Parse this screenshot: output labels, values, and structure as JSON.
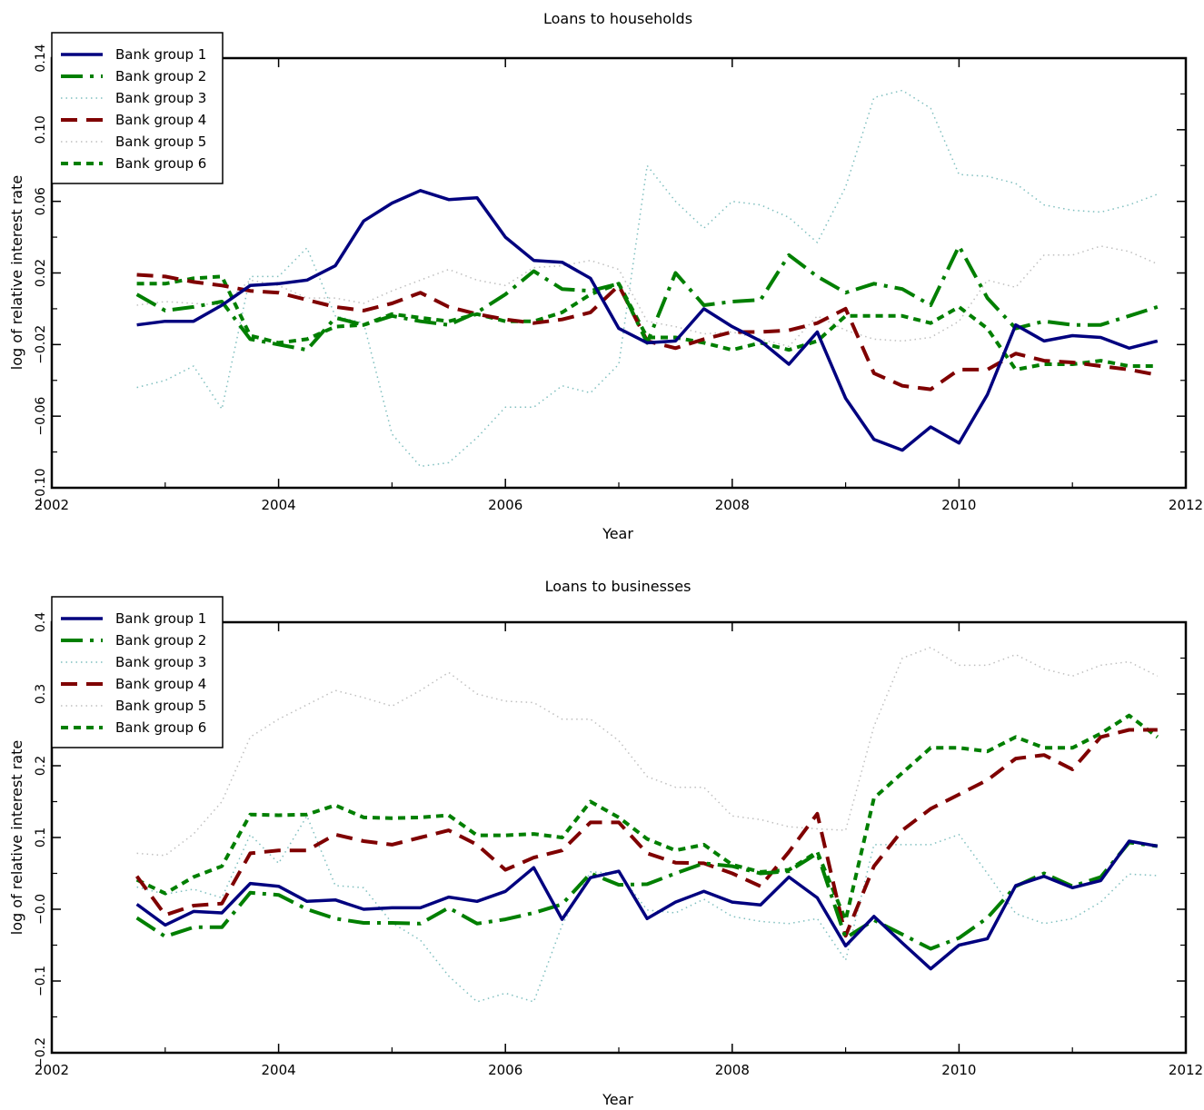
{
  "chart_data": [
    {
      "type": "line",
      "title": "Loans to households",
      "xlabel": "Year",
      "ylabel": "log of relative interest rate",
      "xlim": [
        2002,
        2012
      ],
      "ylim": [
        -0.1,
        0.14
      ],
      "xticks": [
        2002,
        2004,
        2006,
        2008,
        2010,
        2012
      ],
      "xtick_labels": [
        "2002",
        "2004",
        "2006",
        "2008",
        "2010",
        "2012"
      ],
      "yticks": [
        -0.1,
        -0.06,
        -0.02,
        0.02,
        0.06,
        0.1,
        0.14
      ],
      "ytick_labels": [
        "−0.10",
        "−0.06",
        "−0.02",
        "0.02",
        "0.06",
        "0.10",
        "0.14"
      ],
      "legend_position": "top-left",
      "grid": false,
      "x": [
        2002.75,
        2003.0,
        2003.25,
        2003.5,
        2003.75,
        2004.0,
        2004.25,
        2004.5,
        2004.75,
        2005.0,
        2005.25,
        2005.5,
        2005.75,
        2006.0,
        2006.25,
        2006.5,
        2006.75,
        2007.0,
        2007.25,
        2007.5,
        2007.75,
        2008.0,
        2008.25,
        2008.5,
        2008.75,
        2009.0,
        2009.25,
        2009.5,
        2009.75,
        2010.0,
        2010.25,
        2010.5,
        2010.75,
        2011.0,
        2011.25,
        2011.5,
        2011.75
      ],
      "series": [
        {
          "name": "Bank group 1",
          "color": "#00007f",
          "style": "solid",
          "values": [
            -0.009,
            -0.007,
            -0.007,
            0.002,
            0.013,
            0.014,
            0.016,
            0.024,
            0.049,
            0.059,
            0.066,
            0.061,
            0.062,
            0.04,
            0.027,
            0.026,
            0.017,
            -0.011,
            -0.019,
            -0.018,
            0.0,
            -0.01,
            -0.018,
            -0.031,
            -0.013,
            -0.05,
            -0.073,
            -0.079,
            -0.066,
            -0.075,
            -0.048,
            -0.009,
            -0.018,
            -0.015,
            -0.016,
            -0.022,
            -0.018
          ]
        },
        {
          "name": "Bank group 2",
          "color": "#007f00",
          "style": "dashdot",
          "values": [
            0.008,
            -0.001,
            0.001,
            0.004,
            -0.017,
            -0.02,
            -0.023,
            -0.005,
            -0.009,
            -0.004,
            -0.007,
            -0.009,
            -0.002,
            0.008,
            0.021,
            0.011,
            0.01,
            0.014,
            -0.019,
            0.02,
            0.002,
            0.004,
            0.005,
            0.03,
            0.018,
            0.009,
            0.014,
            0.011,
            0.002,
            0.035,
            0.006,
            -0.011,
            -0.007,
            -0.009,
            -0.009,
            -0.004,
            0.001
          ]
        },
        {
          "name": "Bank group 3",
          "color": "#7fbfbf",
          "style": "dotted",
          "values": [
            -0.044,
            -0.04,
            -0.032,
            -0.056,
            0.018,
            0.018,
            0.034,
            -0.004,
            -0.008,
            -0.07,
            -0.088,
            -0.086,
            -0.072,
            -0.055,
            -0.055,
            -0.043,
            -0.047,
            -0.031,
            0.08,
            0.06,
            0.045,
            0.06,
            0.058,
            0.051,
            0.037,
            0.068,
            0.118,
            0.122,
            0.112,
            0.075,
            0.074,
            0.07,
            0.058,
            0.055,
            0.054,
            0.058,
            0.064
          ]
        },
        {
          "name": "Bank group 4",
          "color": "#7f0000",
          "style": "dashed",
          "values": [
            0.019,
            0.018,
            0.015,
            0.013,
            0.01,
            0.009,
            0.005,
            0.001,
            -0.001,
            0.003,
            0.009,
            0.001,
            -0.003,
            -0.006,
            -0.008,
            -0.006,
            -0.002,
            0.013,
            -0.018,
            -0.022,
            -0.017,
            -0.013,
            -0.013,
            -0.012,
            -0.008,
            0.0,
            -0.036,
            -0.043,
            -0.045,
            -0.034,
            -0.034,
            -0.025,
            -0.029,
            -0.03,
            -0.032,
            -0.034,
            -0.037
          ]
        },
        {
          "name": "Bank group 5",
          "color": "#bfbfbf",
          "style": "dotted",
          "values": [
            0.002,
            0.004,
            0.003,
            0.002,
            0.016,
            0.013,
            0.006,
            0.006,
            0.003,
            0.01,
            0.016,
            0.022,
            0.016,
            0.013,
            0.023,
            0.024,
            0.027,
            0.022,
            -0.007,
            -0.01,
            -0.014,
            -0.013,
            -0.017,
            -0.021,
            -0.004,
            -0.012,
            -0.017,
            -0.018,
            -0.016,
            -0.007,
            0.016,
            0.012,
            0.03,
            0.03,
            0.035,
            0.032,
            0.025
          ]
        },
        {
          "name": "Bank group 6",
          "color": "#007f00",
          "style": "shortdash",
          "values": [
            0.014,
            0.014,
            0.017,
            0.018,
            -0.015,
            -0.019,
            -0.017,
            -0.01,
            -0.009,
            -0.003,
            -0.005,
            -0.007,
            -0.003,
            -0.007,
            -0.007,
            -0.002,
            0.008,
            0.014,
            -0.016,
            -0.016,
            -0.019,
            -0.023,
            -0.019,
            -0.023,
            -0.018,
            -0.004,
            -0.004,
            -0.004,
            -0.008,
            0.001,
            -0.011,
            -0.034,
            -0.031,
            -0.031,
            -0.029,
            -0.032,
            -0.032
          ]
        }
      ]
    },
    {
      "type": "line",
      "title": "Loans to businesses",
      "xlabel": "Year",
      "ylabel": "log of relative interest rate",
      "xlim": [
        2002,
        2012
      ],
      "ylim": [
        -0.2,
        0.4
      ],
      "xticks": [
        2002,
        2004,
        2006,
        2008,
        2010,
        2012
      ],
      "xtick_labels": [
        "2002",
        "2004",
        "2006",
        "2008",
        "2010",
        "2012"
      ],
      "yticks": [
        -0.2,
        -0.1,
        0.0,
        0.1,
        0.2,
        0.3,
        0.4
      ],
      "ytick_labels": [
        "−0.2",
        "−0.1",
        "−0.0",
        "0.1",
        "0.2",
        "0.3",
        "0.4"
      ],
      "legend_position": "top-left",
      "grid": false,
      "x": [
        2002.75,
        2003.0,
        2003.25,
        2003.5,
        2003.75,
        2004.0,
        2004.25,
        2004.5,
        2004.75,
        2005.0,
        2005.25,
        2005.5,
        2005.75,
        2006.0,
        2006.25,
        2006.5,
        2006.75,
        2007.0,
        2007.25,
        2007.5,
        2007.75,
        2008.0,
        2008.25,
        2008.5,
        2008.75,
        2009.0,
        2009.25,
        2009.5,
        2009.75,
        2010.0,
        2010.25,
        2010.5,
        2010.75,
        2011.0,
        2011.25,
        2011.5,
        2011.75
      ],
      "series": [
        {
          "name": "Bank group 1",
          "color": "#00007f",
          "style": "solid",
          "values": [
            0.007,
            -0.022,
            -0.003,
            -0.005,
            0.036,
            0.032,
            0.011,
            0.013,
            0.0,
            0.002,
            0.002,
            0.017,
            0.011,
            0.025,
            0.058,
            -0.014,
            0.044,
            0.053,
            -0.013,
            0.01,
            0.025,
            0.01,
            0.006,
            0.045,
            0.016,
            -0.051,
            -0.01,
            -0.047,
            -0.083,
            -0.05,
            -0.041,
            0.033,
            0.046,
            0.03,
            0.04,
            0.095,
            0.088
          ]
        },
        {
          "name": "Bank group 2",
          "color": "#007f00",
          "style": "dashdot",
          "values": [
            -0.012,
            -0.038,
            -0.025,
            -0.025,
            0.023,
            0.02,
            0.0,
            -0.013,
            -0.019,
            -0.019,
            -0.02,
            0.002,
            -0.02,
            -0.014,
            -0.005,
            0.007,
            0.05,
            0.034,
            0.035,
            0.05,
            0.064,
            0.06,
            0.05,
            0.053,
            0.078,
            -0.04,
            -0.015,
            -0.035,
            -0.055,
            -0.04,
            -0.012,
            0.032,
            0.05,
            0.032,
            0.045,
            0.093,
            0.088
          ]
        },
        {
          "name": "Bank group 3",
          "color": "#7fbfbf",
          "style": "dotted",
          "values": [
            0.031,
            0.021,
            0.028,
            0.016,
            0.104,
            0.064,
            0.13,
            0.033,
            0.03,
            -0.019,
            -0.043,
            -0.093,
            -0.129,
            -0.117,
            -0.129,
            -0.022,
            0.052,
            0.05,
            -0.001,
            -0.005,
            0.014,
            -0.01,
            -0.017,
            -0.02,
            -0.013,
            -0.071,
            0.09,
            0.09,
            0.09,
            0.104,
            0.05,
            -0.006,
            -0.02,
            -0.013,
            0.01,
            0.049,
            0.047
          ]
        },
        {
          "name": "Bank group 4",
          "color": "#7f0000",
          "style": "dashed",
          "values": [
            0.046,
            -0.008,
            0.005,
            0.008,
            0.078,
            0.082,
            0.082,
            0.104,
            0.095,
            0.09,
            0.1,
            0.11,
            0.09,
            0.055,
            0.072,
            0.082,
            0.121,
            0.121,
            0.078,
            0.065,
            0.064,
            0.05,
            0.032,
            0.08,
            0.133,
            -0.037,
            0.06,
            0.11,
            0.14,
            0.16,
            0.18,
            0.21,
            0.215,
            0.195,
            0.24,
            0.25,
            0.25
          ]
        },
        {
          "name": "Bank group 5",
          "color": "#bfbfbf",
          "style": "dotted",
          "values": [
            0.078,
            0.075,
            0.105,
            0.15,
            0.24,
            0.265,
            0.285,
            0.305,
            0.295,
            0.283,
            0.305,
            0.33,
            0.3,
            0.29,
            0.288,
            0.265,
            0.265,
            0.235,
            0.185,
            0.17,
            0.17,
            0.13,
            0.125,
            0.115,
            0.112,
            0.11,
            0.255,
            0.35,
            0.365,
            0.34,
            0.34,
            0.355,
            0.335,
            0.325,
            0.34,
            0.345,
            0.325
          ]
        },
        {
          "name": "Bank group 6",
          "color": "#007f00",
          "style": "shortdash",
          "values": [
            0.041,
            0.022,
            0.045,
            0.06,
            0.132,
            0.131,
            0.132,
            0.145,
            0.128,
            0.127,
            0.128,
            0.131,
            0.103,
            0.103,
            0.105,
            0.1,
            0.15,
            0.128,
            0.098,
            0.082,
            0.09,
            0.062,
            0.052,
            0.055,
            0.08,
            -0.015,
            0.155,
            0.19,
            0.225,
            0.225,
            0.22,
            0.24,
            0.225,
            0.225,
            0.245,
            0.27,
            0.24
          ]
        }
      ]
    }
  ]
}
